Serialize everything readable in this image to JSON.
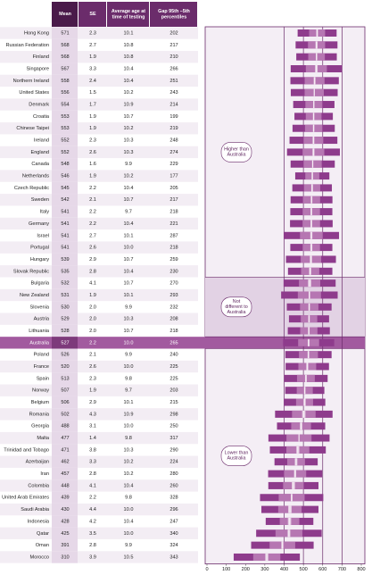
{
  "table": {
    "headers": [
      "Mean",
      "SE",
      "Average age at time of testing",
      "Gap 95th –5th percentiles"
    ],
    "groups": [
      {
        "label": "Higher than Australia",
        "rows": [
          [
            "Hong Kong",
            571,
            2.3,
            10.1,
            202
          ],
          [
            "Russian Federation",
            568,
            2.7,
            10.8,
            217
          ],
          [
            "Finland",
            568,
            1.9,
            10.8,
            210
          ],
          [
            "Singapore",
            567,
            3.3,
            10.4,
            266
          ],
          [
            "Northern Ireland",
            558,
            2.4,
            10.4,
            251
          ],
          [
            "United States",
            556,
            1.5,
            10.2,
            243
          ],
          [
            "Denmark",
            554,
            1.7,
            10.9,
            214
          ],
          [
            "Croatia",
            553,
            1.9,
            10.7,
            199
          ],
          [
            "Chinese Taipei",
            553,
            1.9,
            10.2,
            219
          ],
          [
            "Ireland",
            552,
            2.3,
            10.3,
            248
          ],
          [
            "England",
            552,
            2.6,
            10.3,
            274
          ],
          [
            "Canada",
            548,
            1.6,
            9.9,
            229
          ],
          [
            "Netherlands",
            546,
            1.9,
            10.2,
            177
          ],
          [
            "Czech Republic",
            545,
            2.2,
            10.4,
            205
          ],
          [
            "Sweden",
            542,
            2.1,
            10.7,
            217
          ],
          [
            "Italy",
            541,
            2.2,
            9.7,
            218
          ],
          [
            "Germany",
            541,
            2.2,
            10.4,
            221
          ],
          [
            "Israel",
            541,
            2.7,
            10.1,
            287
          ],
          [
            "Portugal",
            541,
            2.6,
            10.0,
            218
          ],
          [
            "Hungary",
            539,
            2.9,
            10.7,
            259
          ],
          [
            "Slovak Republic",
            535,
            2.8,
            10.4,
            230
          ]
        ]
      },
      {
        "label": "Not different to Australia",
        "rows": [
          [
            "Bulgaria",
            532,
            4.1,
            10.7,
            270
          ],
          [
            "New Zealand",
            531,
            1.9,
            10.1,
            293
          ],
          [
            "Slovenia",
            530,
            2.0,
            9.9,
            232
          ],
          [
            "Austria",
            529,
            2.0,
            10.3,
            208
          ],
          [
            "Lithuania",
            528,
            2.0,
            10.7,
            218
          ]
        ]
      },
      {
        "rows": [
          [
            "Australia",
            527,
            2.2,
            10.0,
            265
          ]
        ]
      },
      {
        "label": "Lower than Australia",
        "rows": [
          [
            "Poland",
            526,
            2.1,
            9.9,
            240
          ],
          [
            "France",
            520,
            2.6,
            10.0,
            225
          ],
          [
            "Spain",
            513,
            2.3,
            9.8,
            225
          ],
          [
            "Norway",
            507,
            1.9,
            9.7,
            203
          ],
          [
            "Belgium",
            506,
            2.9,
            10.1,
            215
          ],
          [
            "Romania",
            502,
            4.3,
            10.9,
            298
          ],
          [
            "Georgia",
            488,
            3.1,
            10.0,
            250
          ],
          [
            "Malta",
            477,
            1.4,
            9.8,
            317
          ],
          [
            "Trinidad and Tobago",
            471,
            3.8,
            10.3,
            290
          ],
          [
            "Azerbaijan",
            462,
            3.3,
            10.2,
            224
          ],
          [
            "Iran",
            457,
            2.8,
            10.2,
            280
          ],
          [
            "Colombia",
            448,
            4.1,
            10.4,
            260
          ],
          [
            "United Arab Emirates",
            439,
            2.2,
            9.8,
            328
          ],
          [
            "Saudi Arabia",
            430,
            4.4,
            10.0,
            296
          ],
          [
            "Indonesia",
            428,
            4.2,
            10.4,
            247
          ],
          [
            "Qatar",
            425,
            3.5,
            10.0,
            340
          ],
          [
            "Oman",
            391,
            2.8,
            9.9,
            324
          ],
          [
            "Morocco",
            310,
            3.9,
            10.5,
            343
          ]
        ]
      }
    ]
  },
  "chart_data": {
    "type": "percentile-bar",
    "xlim": [
      0,
      800
    ],
    "xticks": [
      0,
      100,
      200,
      300,
      400,
      500,
      600,
      700,
      800
    ],
    "grid": [
      400,
      500,
      600,
      700
    ]
  }
}
